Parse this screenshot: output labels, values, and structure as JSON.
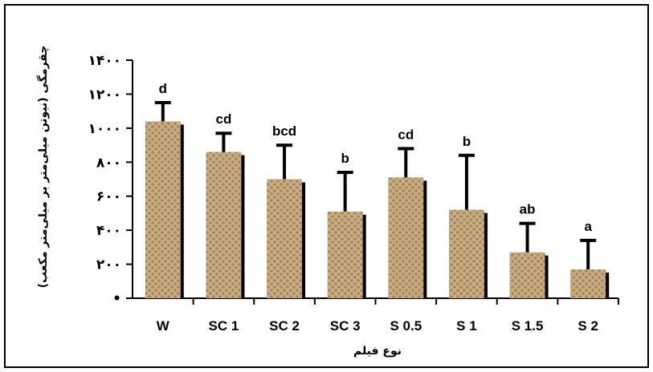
{
  "chart_data": {
    "type": "bar",
    "categories": [
      "W",
      "SC 1",
      "SC 2",
      "SC 3",
      "S 0.5",
      "S 1",
      "S 1.5",
      "S 2"
    ],
    "values": [
      1040,
      860,
      700,
      510,
      710,
      520,
      270,
      170
    ],
    "errors": [
      110,
      110,
      200,
      230,
      170,
      320,
      170,
      170
    ],
    "significance": [
      "d",
      "cd",
      "bcd",
      "b",
      "cd",
      "b",
      "ab",
      "a"
    ],
    "xlabel": "نوع فیلم",
    "ylabel": "چقرمگی (نیوتن میلی‌متر بر میلی‌متر مکعب)",
    "ylim": [
      0,
      1400
    ],
    "yticks": [
      0,
      200,
      400,
      600,
      800,
      1000,
      1200,
      1400
    ],
    "ytick_labels": [
      "•",
      "۲۰۰",
      "۴۰۰",
      "۶۰۰",
      "۸۰۰",
      "۱۰۰۰",
      "۱۲۰۰",
      "۱۴۰۰"
    ],
    "grid": false,
    "legend": "none",
    "bar_color": "#c9ad82",
    "pattern_color": "#a3835a"
  }
}
